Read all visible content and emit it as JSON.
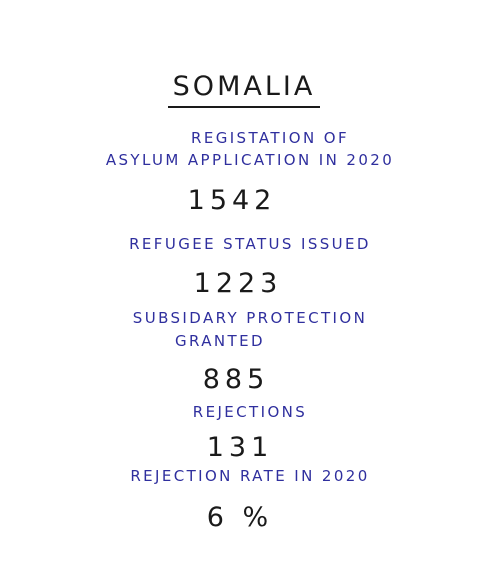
{
  "title": "SOMALIA",
  "stats": [
    {
      "label_lines": [
        "REGISTATION OF",
        "ASYLUM APPLICATION IN 2020"
      ],
      "value": "1542"
    },
    {
      "label_lines": [
        "REFUGEE STATUS ISSUED"
      ],
      "value": "1223"
    },
    {
      "label_lines": [
        "SUBSIDARY PROTECTION",
        "GRANTED"
      ],
      "value": "885"
    },
    {
      "label_lines": [
        "REJECTIONS"
      ],
      "value": "131"
    },
    {
      "label_lines": [
        "REJECTION RATE IN 2020"
      ],
      "value": "6 %"
    }
  ],
  "colors": {
    "label": "#2f2f9e",
    "value": "#1a1a1a"
  }
}
